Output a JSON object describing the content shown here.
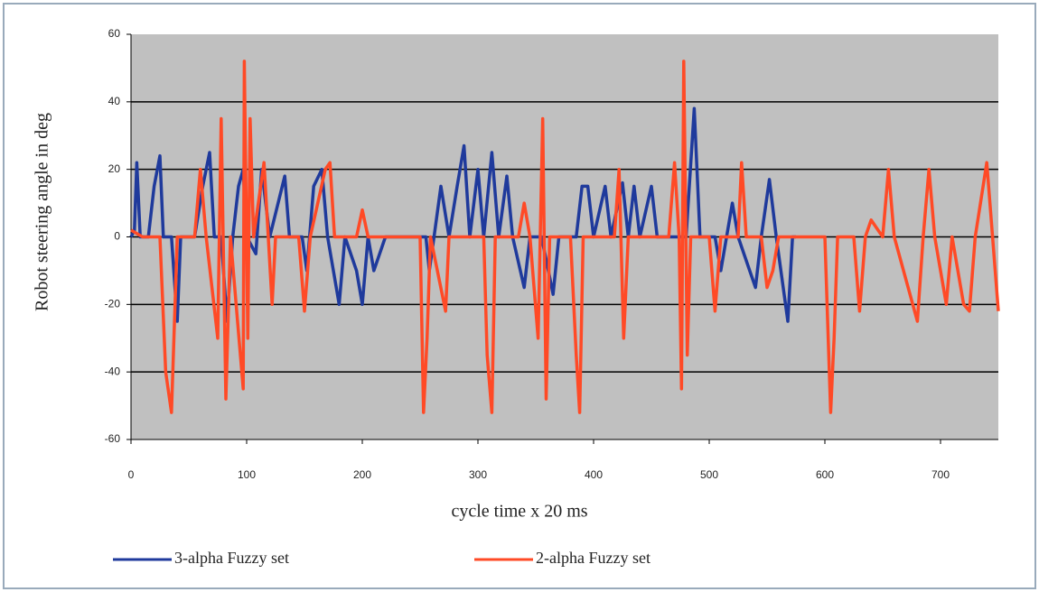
{
  "chart_data": {
    "type": "line",
    "x_label": "cycle time x 20 ms",
    "y_label": "Robot steering angle in deg",
    "xlim": [
      0,
      750
    ],
    "xticks": [
      0,
      100,
      200,
      300,
      400,
      500,
      600,
      700
    ],
    "ylim": [
      -60,
      60
    ],
    "yticks": [
      -60,
      -40,
      -20,
      0,
      20,
      40,
      60
    ],
    "grid": true,
    "legend": "bottom",
    "series": [
      {
        "name": "3-alpha Fuzzy set",
        "color": "#1f3a9c",
        "x": [
          0,
          3,
          5,
          8,
          15,
          20,
          25,
          28,
          35,
          40,
          43,
          55,
          62,
          68,
          72,
          78,
          83,
          88,
          93,
          97,
          100,
          108,
          113,
          120,
          133,
          137,
          148,
          152,
          158,
          165,
          170,
          180,
          185,
          195,
          200,
          205,
          210,
          220,
          255,
          258,
          262,
          268,
          275,
          282,
          288,
          293,
          300,
          305,
          312,
          318,
          325,
          330,
          340,
          345,
          355,
          365,
          370,
          385,
          390,
          395,
          400,
          410,
          415,
          425,
          430,
          435,
          440,
          450,
          455,
          470,
          480,
          487,
          492,
          505,
          510,
          515,
          520,
          525,
          535,
          540,
          545,
          552,
          558,
          568,
          572,
          575
        ],
        "values": [
          0,
          2,
          22,
          0,
          0,
          15,
          24,
          0,
          0,
          -25,
          0,
          0,
          15,
          25,
          0,
          0,
          -25,
          0,
          15,
          20,
          0,
          -5,
          20,
          0,
          18,
          0,
          0,
          -10,
          15,
          20,
          0,
          -20,
          0,
          -10,
          -20,
          0,
          -10,
          0,
          0,
          -10,
          0,
          15,
          0,
          15,
          27,
          0,
          20,
          0,
          25,
          0,
          18,
          0,
          -15,
          0,
          0,
          -17,
          0,
          0,
          15,
          15,
          0,
          15,
          0,
          16,
          0,
          15,
          0,
          15,
          0,
          0,
          0,
          38,
          0,
          0,
          -10,
          0,
          10,
          0,
          -10,
          -15,
          0,
          17,
          0,
          -25,
          0,
          0
        ]
      },
      {
        "name": "2-alpha Fuzzy set",
        "color": "#ff4a26",
        "x": [
          0,
          10,
          25,
          30,
          35,
          40,
          55,
          60,
          65,
          75,
          78,
          82,
          86,
          97,
          98,
          101,
          103,
          106,
          115,
          122,
          125,
          145,
          150,
          155,
          168,
          172,
          176,
          195,
          200,
          205,
          250,
          253,
          256,
          259,
          272,
          275,
          305,
          308,
          312,
          315,
          335,
          340,
          345,
          352,
          356,
          359,
          362,
          380,
          385,
          388,
          391,
          418,
          422,
          426,
          430,
          465,
          470,
          474,
          476,
          478,
          481,
          484,
          500,
          505,
          510,
          525,
          528,
          532,
          545,
          550,
          555,
          560,
          600,
          605,
          608,
          611,
          625,
          630,
          635,
          640,
          650,
          655,
          660,
          680,
          685,
          690,
          695,
          705,
          710,
          720,
          725,
          730,
          740,
          745,
          750
        ],
        "values": [
          2,
          0,
          0,
          -40,
          -52,
          0,
          0,
          20,
          0,
          -30,
          35,
          -48,
          0,
          -45,
          52,
          -30,
          35,
          0,
          22,
          -20,
          0,
          0,
          -22,
          0,
          20,
          22,
          0,
          0,
          8,
          0,
          0,
          -52,
          -30,
          0,
          -22,
          0,
          0,
          -35,
          -52,
          0,
          0,
          10,
          0,
          -30,
          35,
          -48,
          0,
          0,
          -35,
          -52,
          0,
          0,
          20,
          -30,
          0,
          0,
          22,
          0,
          -45,
          52,
          -35,
          0,
          0,
          -22,
          0,
          0,
          22,
          0,
          0,
          -15,
          -10,
          0,
          0,
          -52,
          -30,
          0,
          0,
          -22,
          0,
          5,
          0,
          20,
          0,
          -25,
          0,
          20,
          0,
          -20,
          0,
          -20,
          -22,
          0,
          22,
          0,
          -22
        ]
      }
    ]
  }
}
